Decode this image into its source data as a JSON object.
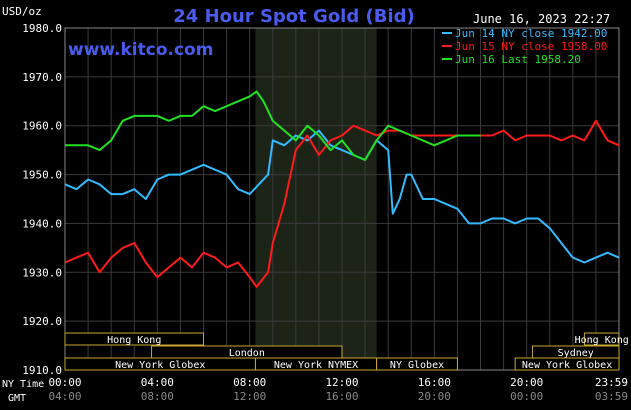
{
  "header": {
    "units": "USD/oz",
    "title": "24 Hour Spot Gold (Bid)",
    "timestamp": "June 16, 2023 22:27",
    "watermark": "www.kitco.com"
  },
  "legend": [
    {
      "label": "Jun 14 NY close 1942.00",
      "color": "#33bbff"
    },
    {
      "label": "Jun 15 NY close 1958.00",
      "color": "#ff1a1a"
    },
    {
      "label": "Jun 16 Last 1958.20",
      "color": "#22e022"
    }
  ],
  "time_axis": {
    "row_label_ny": "NY Time",
    "row_label_gmt": "GMT",
    "ny_labels": [
      "00:00",
      "04:00",
      "08:00",
      "12:00",
      "16:00",
      "20:00",
      "23:59"
    ],
    "gmt_labels": [
      "04:00",
      "08:00",
      "12:00",
      "16:00",
      "20:00",
      "00:00",
      "03:59"
    ]
  },
  "markets": [
    {
      "label": "Hong Kong",
      "start": 0,
      "end": 6
    },
    {
      "label": "Hong Kong",
      "start": 22.5,
      "end": 24
    },
    {
      "label": "London",
      "start": 3.75,
      "end": 12
    },
    {
      "label": "Sydney",
      "start": 20.25,
      "end": 24
    },
    {
      "label": "New York Globex",
      "start": 0,
      "end": 8.25
    },
    {
      "label": "New York NYMEX",
      "start": 8.25,
      "end": 13.5
    },
    {
      "label": "NY Globex",
      "start": 13.5,
      "end": 17
    },
    {
      "label": "New York Globex",
      "start": 19.5,
      "end": 24
    }
  ],
  "chart_data": {
    "type": "line",
    "title": "24 Hour Spot Gold (Bid)",
    "ylabel": "USD/oz",
    "xlabel": "NY Time",
    "ylim": [
      1910,
      1980
    ],
    "y_ticks": [
      1910,
      1920,
      1930,
      1940,
      1950,
      1960,
      1970,
      1980
    ],
    "xlim": [
      0,
      24
    ],
    "grid": true,
    "legend_position": "top-right",
    "highlight_hours": [
      8.25,
      13.5
    ],
    "series": [
      {
        "name": "Jun 14 NY close 1942.00",
        "color": "#33bbff",
        "x": [
          0,
          0.5,
          1,
          1.5,
          2,
          2.5,
          3,
          3.5,
          4,
          4.5,
          5,
          5.5,
          6,
          6.5,
          7,
          7.5,
          8,
          8.4,
          8.8,
          9,
          9.5,
          10,
          10.5,
          11,
          11.5,
          12,
          12.5,
          13,
          13.5,
          14,
          14.2,
          14.5,
          14.8,
          15,
          15.5,
          16,
          16.5,
          17,
          17.5,
          18,
          18.5,
          19,
          19.5,
          20,
          20.5,
          21,
          21.5,
          22,
          22.5,
          23,
          23.5,
          24
        ],
        "y": [
          1948,
          1947,
          1949,
          1948,
          1946,
          1946,
          1947,
          1945,
          1949,
          1950,
          1950,
          1951,
          1952,
          1951,
          1950,
          1947,
          1946,
          1948,
          1950,
          1957,
          1956,
          1958,
          1957,
          1959,
          1956,
          1955,
          1954,
          1953,
          1957,
          1955,
          1942,
          1945,
          1950,
          1950,
          1945,
          1945,
          1944,
          1943,
          1940,
          1940,
          1941,
          1941,
          1940,
          1941,
          1941,
          1939,
          1936,
          1933,
          1932,
          1933,
          1934,
          1933
        ]
      },
      {
        "name": "Jun 15 NY close 1958.00",
        "color": "#ff1a1a",
        "x": [
          0,
          0.5,
          1,
          1.5,
          2,
          2.5,
          3,
          3.5,
          4,
          4.5,
          5,
          5.5,
          6,
          6.5,
          7,
          7.5,
          8,
          8.3,
          8.8,
          9,
          9.5,
          10,
          10.5,
          11,
          11.5,
          12,
          12.5,
          13,
          13.5,
          14,
          14.5,
          15,
          15.5,
          16,
          16.5,
          17,
          17.5,
          18,
          18.5,
          19,
          19.5,
          20,
          20.5,
          21,
          21.5,
          22,
          22.5,
          23,
          23.5,
          24
        ],
        "y": [
          1932,
          1933,
          1934,
          1930,
          1933,
          1935,
          1936,
          1932,
          1929,
          1931,
          1933,
          1931,
          1934,
          1933,
          1931,
          1932,
          1929,
          1927,
          1930,
          1936,
          1944,
          1955,
          1958,
          1954,
          1957,
          1958,
          1960,
          1959,
          1958,
          1959,
          1959,
          1958,
          1958,
          1958,
          1958,
          1958,
          1958,
          1958,
          1958,
          1959,
          1957,
          1958,
          1958,
          1958,
          1957,
          1958,
          1957,
          1961,
          1957,
          1956
        ]
      },
      {
        "name": "Jun 16 Last 1958.20",
        "color": "#22e022",
        "x": [
          0,
          0.5,
          1,
          1.5,
          2,
          2.5,
          3,
          3.5,
          4,
          4.5,
          5,
          5.5,
          6,
          6.5,
          7,
          7.5,
          8,
          8.3,
          8.6,
          9,
          9.5,
          10,
          10.5,
          11,
          11.5,
          12,
          12.5,
          13,
          13.5,
          14,
          14.5,
          15,
          15.5,
          16,
          16.5,
          17,
          17.5,
          18
        ],
        "y": [
          1956,
          1956,
          1956,
          1955,
          1957,
          1961,
          1962,
          1962,
          1962,
          1961,
          1962,
          1962,
          1964,
          1963,
          1964,
          1965,
          1966,
          1967,
          1965,
          1961,
          1959,
          1957,
          1960,
          1958,
          1955,
          1957,
          1954,
          1953,
          1957,
          1960,
          1959,
          1958,
          1957,
          1956,
          1957,
          1958,
          1958,
          1958
        ]
      }
    ]
  }
}
